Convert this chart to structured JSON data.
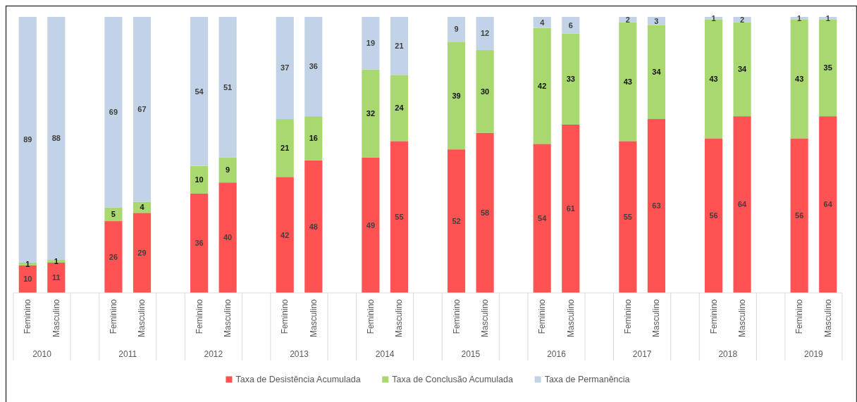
{
  "chart_data": {
    "type": "bar",
    "stacked": true,
    "data_labels": true,
    "legend": "bottom",
    "categories": [
      "Feminino",
      "Masculino",
      "Feminino",
      "Masculino",
      "Feminino",
      "Masculino",
      "Feminino",
      "Masculino",
      "Feminino",
      "Masculino",
      "Feminino",
      "Masculino",
      "Feminino",
      "Masculino",
      "Feminino",
      "Masculino",
      "Feminino",
      "Masculino",
      "Feminino",
      "Masculino"
    ],
    "annotations": [
      "2010",
      "2011",
      "2012",
      "2013",
      "2014",
      "2015",
      "2016",
      "2017",
      "2018",
      "2019"
    ],
    "series": [
      {
        "name": "Taxa de Desistência Acumulada",
        "color": "#ff5353",
        "values": [
          10,
          11,
          26,
          29,
          36,
          40,
          42,
          48,
          49,
          55,
          52,
          58,
          54,
          61,
          55,
          63,
          56,
          64,
          56,
          64
        ]
      },
      {
        "name": "Taxa de Conclusão Acumulada",
        "color": "#a9d870",
        "values": [
          1,
          1,
          5,
          4,
          10,
          9,
          21,
          16,
          32,
          24,
          39,
          30,
          42,
          33,
          43,
          34,
          43,
          34,
          43,
          35
        ]
      },
      {
        "name": "Taxa de Permanência",
        "color": "#c2d2e7",
        "values": [
          89,
          88,
          69,
          67,
          54,
          51,
          37,
          36,
          19,
          21,
          9,
          12,
          4,
          6,
          2,
          3,
          1,
          2,
          1,
          1
        ]
      }
    ]
  }
}
